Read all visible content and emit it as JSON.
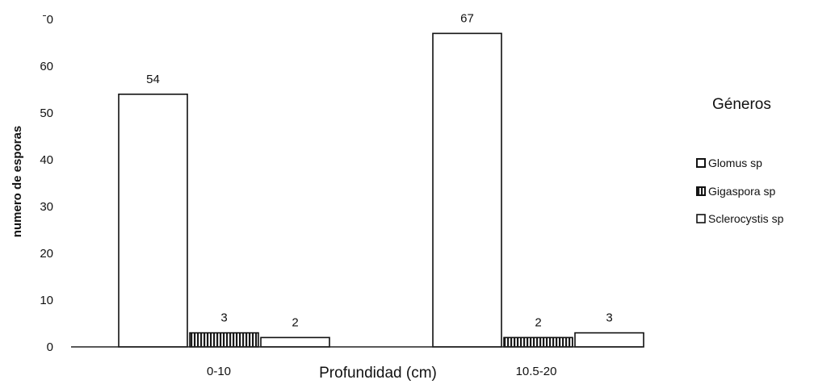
{
  "chart_data": {
    "type": "bar",
    "categories": [
      "0-10",
      "10.5-20"
    ],
    "series": [
      {
        "name": "Glomus sp",
        "values": [
          54,
          67
        ],
        "pattern": "open",
        "color": "#ffffff"
      },
      {
        "name": "Gigaspora sp",
        "values": [
          3,
          2
        ],
        "pattern": "striped",
        "color": "#222222"
      },
      {
        "name": "Sclerocystis sp",
        "values": [
          2,
          3
        ],
        "pattern": "open",
        "color": "#ffffff"
      }
    ],
    "data_labels": [
      [
        "54",
        "67"
      ],
      [
        "3",
        "2"
      ],
      [
        "2",
        "3"
      ]
    ],
    "yticks": [
      "0",
      "10",
      "20",
      "30",
      "40",
      "50",
      "60",
      "ˉ0"
    ],
    "ylim": [
      0,
      70
    ],
    "xlabel": "Profundidad (cm)",
    "ylabel": "numero de esporas",
    "legend_title": "Géneros",
    "legend_position": "right",
    "grid": false
  }
}
